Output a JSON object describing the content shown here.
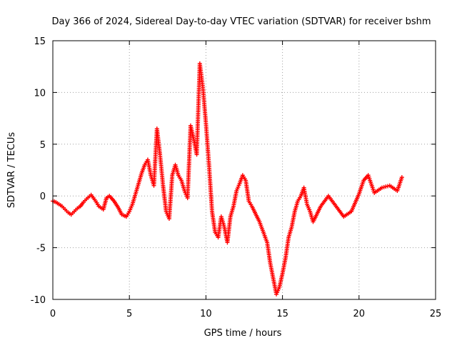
{
  "chart_data": {
    "type": "scatter",
    "title": "Day 366 of 2024, Sidereal Day-to-day VTEC variation (SDTVAR) for receiver bshm",
    "xlabel": "GPS time / hours",
    "ylabel": "SDTVAR / TECUs",
    "xlim": [
      0,
      25
    ],
    "ylim": [
      -10,
      15
    ],
    "xticks": [
      0,
      5,
      10,
      15,
      20,
      25
    ],
    "yticks": [
      -10,
      -5,
      0,
      5,
      10,
      15
    ],
    "grid": true,
    "marker": "+",
    "marker_color": "#ff0000",
    "series": [
      {
        "name": "SDTVAR",
        "x": [
          0.0,
          0.2,
          0.4,
          0.6,
          0.8,
          1.0,
          1.2,
          1.4,
          1.6,
          1.8,
          2.0,
          2.2,
          2.5,
          2.8,
          3.0,
          3.3,
          3.5,
          3.7,
          4.0,
          4.3,
          4.5,
          4.8,
          5.0,
          5.2,
          5.4,
          5.6,
          5.8,
          6.0,
          6.2,
          6.4,
          6.6,
          6.8,
          7.0,
          7.2,
          7.4,
          7.6,
          7.8,
          8.0,
          8.2,
          8.4,
          8.6,
          8.8,
          9.0,
          9.2,
          9.4,
          9.6,
          9.8,
          10.0,
          10.2,
          10.4,
          10.6,
          10.8,
          11.0,
          11.2,
          11.4,
          11.6,
          11.8,
          12.0,
          12.2,
          12.4,
          12.6,
          12.8,
          13.0,
          13.5,
          14.0,
          14.2,
          14.4,
          14.6,
          14.8,
          15.0,
          15.2,
          15.4,
          15.6,
          15.8,
          16.0,
          16.2,
          16.4,
          16.6,
          16.8,
          17.0,
          17.5,
          18.0,
          18.5,
          19.0,
          19.5,
          20.0,
          20.3,
          20.6,
          21.0,
          21.5,
          22.0,
          22.5,
          22.8
        ],
        "y": [
          -0.5,
          -0.6,
          -0.8,
          -1.0,
          -1.3,
          -1.6,
          -1.8,
          -1.5,
          -1.2,
          -1.0,
          -0.6,
          -0.3,
          0.1,
          -0.5,
          -1.0,
          -1.3,
          -0.2,
          0.0,
          -0.5,
          -1.2,
          -1.8,
          -2.0,
          -1.5,
          -0.8,
          0.2,
          1.2,
          2.2,
          3.0,
          3.5,
          2.0,
          1.0,
          6.5,
          4.0,
          1.0,
          -1.5,
          -2.2,
          2.0,
          3.0,
          2.0,
          1.5,
          0.5,
          -0.2,
          6.8,
          5.5,
          4.0,
          12.8,
          10.5,
          7.0,
          3.0,
          -1.5,
          -3.5,
          -4.0,
          -2.0,
          -3.0,
          -4.5,
          -2.0,
          -1.0,
          0.5,
          1.2,
          2.0,
          1.5,
          -0.5,
          -1.0,
          -2.5,
          -4.5,
          -6.5,
          -8.0,
          -9.5,
          -8.8,
          -7.5,
          -6.0,
          -4.0,
          -3.0,
          -1.5,
          -0.5,
          0.0,
          0.8,
          -0.8,
          -1.5,
          -2.5,
          -1.0,
          0.0,
          -1.0,
          -2.0,
          -1.5,
          0.2,
          1.5,
          2.0,
          0.3,
          0.8,
          1.0,
          0.5,
          1.8
        ]
      }
    ]
  }
}
